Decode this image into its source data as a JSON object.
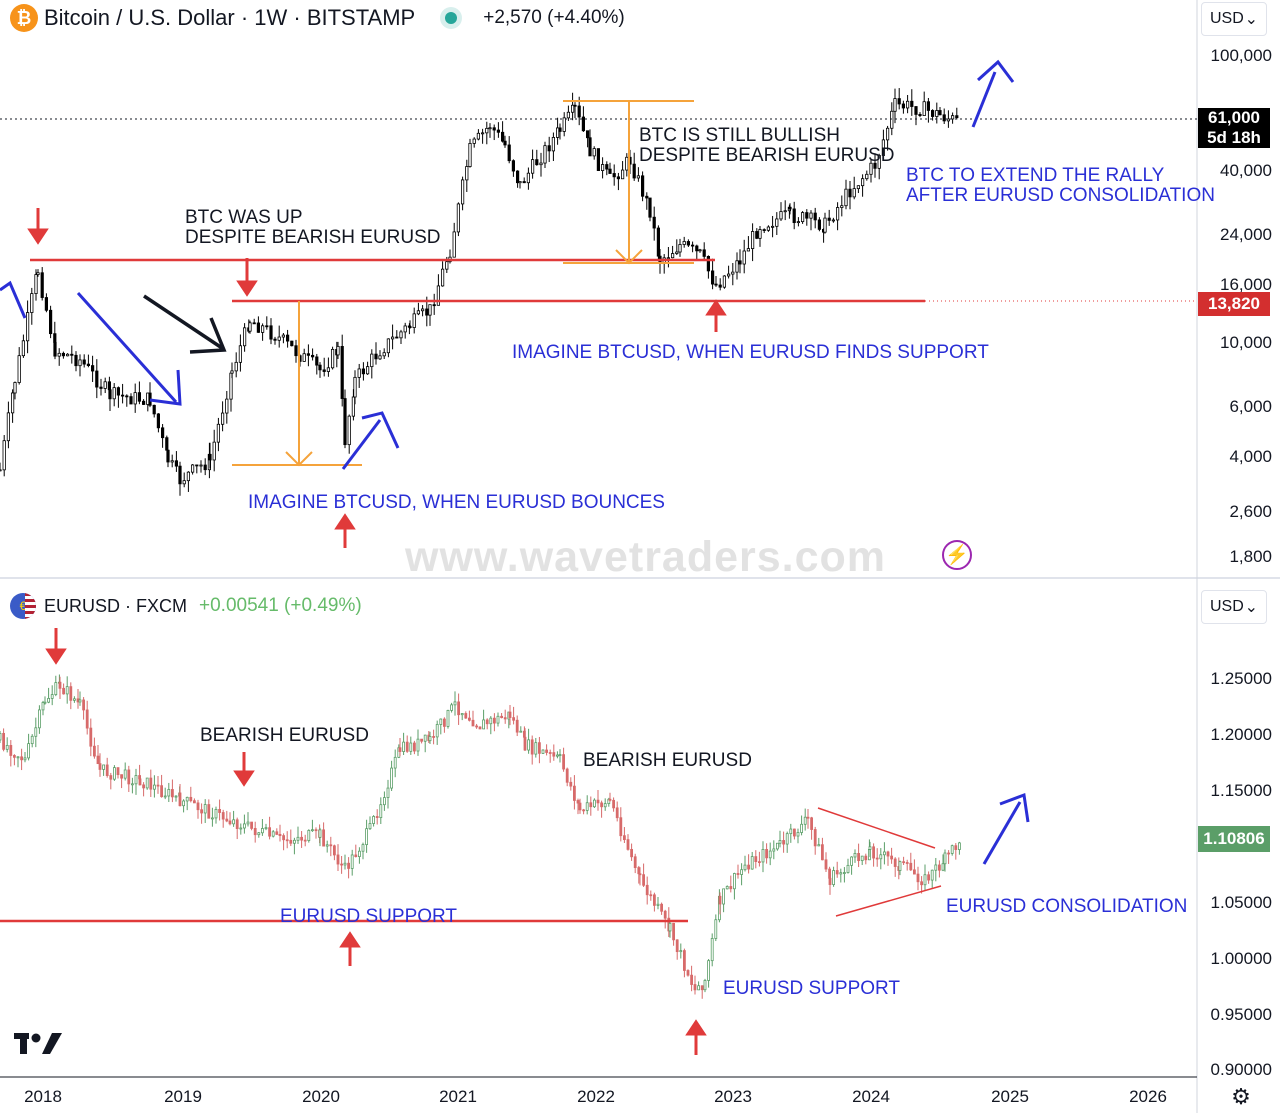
{
  "btc_header": {
    "coin_glyph": "₿",
    "title": "Bitcoin / U.S. Dollar · 1W · BITSTAMP",
    "change": "+2,570 (+4.40%)",
    "change_color": "#131722",
    "status_color": "#26a69a"
  },
  "eur_header": {
    "title": "EURUSD · FXCM",
    "change": "+0.00541 (+0.49%)",
    "change_color": "#66bb6a"
  },
  "currency_selector": "USD",
  "btc_axis": [
    "100,000",
    "40,000",
    "24,000",
    "16,000",
    "10,000",
    "6,000",
    "4,000",
    "2,600",
    "1,800"
  ],
  "btc_price_tag": {
    "price": "61,000",
    "countdown": "5d 18h",
    "color": "#000000"
  },
  "btc_level_tag": {
    "price": "13,820",
    "color": "#d32f2f"
  },
  "eur_axis": [
    "1.25000",
    "1.20000",
    "1.15000",
    "1.05000",
    "1.00000",
    "0.95000",
    "0.90000"
  ],
  "eur_price_tag": {
    "price": "1.10806",
    "color": "#5b9e68"
  },
  "x_axis": [
    "2018",
    "2019",
    "2020",
    "2021",
    "2022",
    "2023",
    "2024",
    "2025",
    "2026"
  ],
  "annotations": {
    "btc_up_1": "BTC WAS UP",
    "btc_up_2": "DESPITE BEARISH EURUSD",
    "btc_bull_1": "BTC IS STILL BULLISH",
    "btc_bull_2": "DESPITE BEARISH EURUSD",
    "btc_extend_1": "BTC TO EXTEND THE RALLY",
    "btc_extend_2": "AFTER EURUSD CONSOLIDATION",
    "btc_imagine_support": "IMAGINE BTCUSD, WHEN EURUSD FINDS SUPPORT",
    "btc_imagine_bounce": "IMAGINE BTCUSD, WHEN EURUSD BOUNCES",
    "eur_bearish_1": "BEARISH EURUSD",
    "eur_bearish_2": "BEARISH EURUSD",
    "eur_support_1": "EURUSD SUPPORT",
    "eur_support_2": "EURUSD SUPPORT",
    "eur_consolidation": "EURUSD CONSOLIDATION"
  },
  "watermark": "www.wavetraders.com",
  "logo": "TV",
  "icons": {
    "settings": "gear-icon",
    "flash": "lightning-icon",
    "dropdown": "chevron-down-icon"
  },
  "colors": {
    "up_candle": "#000000",
    "eur_up": "#5b9e68",
    "eur_down": "#d76a6a",
    "resistance_line": "#e03a3a",
    "measure_line": "#f5a33b",
    "blue_arrow": "#2a2fd6",
    "red_arrow": "#e03a3a"
  }
}
